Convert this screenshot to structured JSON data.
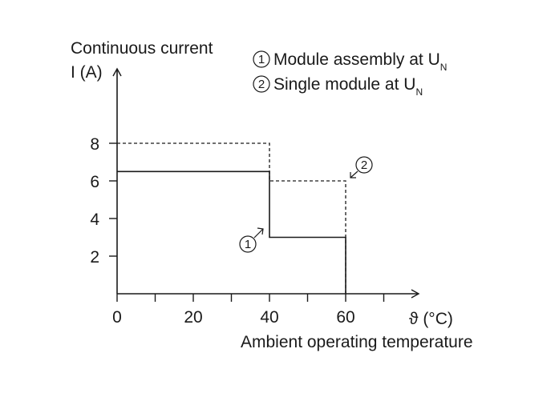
{
  "chart_data": {
    "type": "line",
    "ylabel_line1": "Continuous current",
    "ylabel_line2": "I (A)",
    "xunit": "ϑ (°C)",
    "xlabel": "Ambient operating temperature",
    "xlim": [
      0,
      80
    ],
    "ylim": [
      0,
      9
    ],
    "x_ticks": [
      0,
      10,
      20,
      30,
      40,
      50,
      60,
      70
    ],
    "x_tick_labels": [
      {
        "value": 0,
        "label": "0"
      },
      {
        "value": 20,
        "label": "20"
      },
      {
        "value": 40,
        "label": "40"
      },
      {
        "value": 60,
        "label": "60"
      }
    ],
    "y_ticks": [
      {
        "value": 2,
        "label": "2"
      },
      {
        "value": 4,
        "label": "4"
      },
      {
        "value": 6,
        "label": "6"
      },
      {
        "value": 8,
        "label": "8"
      }
    ],
    "legend": [
      {
        "number": "1",
        "text": "Module assembly at U",
        "sub": "N"
      },
      {
        "number": "2",
        "text": "Single module at U",
        "sub": "N"
      }
    ],
    "series": [
      {
        "number": "1",
        "style": "solid",
        "color": "#1a1a1a",
        "points": [
          [
            0,
            6.5
          ],
          [
            40,
            6.5
          ],
          [
            40,
            3
          ],
          [
            60,
            3
          ],
          [
            60,
            0
          ]
        ]
      },
      {
        "number": "2",
        "style": "dashed",
        "color": "#1a1a1a",
        "points": [
          [
            0,
            8
          ],
          [
            40,
            8
          ],
          [
            40,
            6
          ],
          [
            60,
            6
          ],
          [
            60,
            0
          ]
        ]
      }
    ],
    "callouts": [
      {
        "series": "1",
        "label": "1"
      },
      {
        "series": "2",
        "label": "2"
      }
    ]
  }
}
